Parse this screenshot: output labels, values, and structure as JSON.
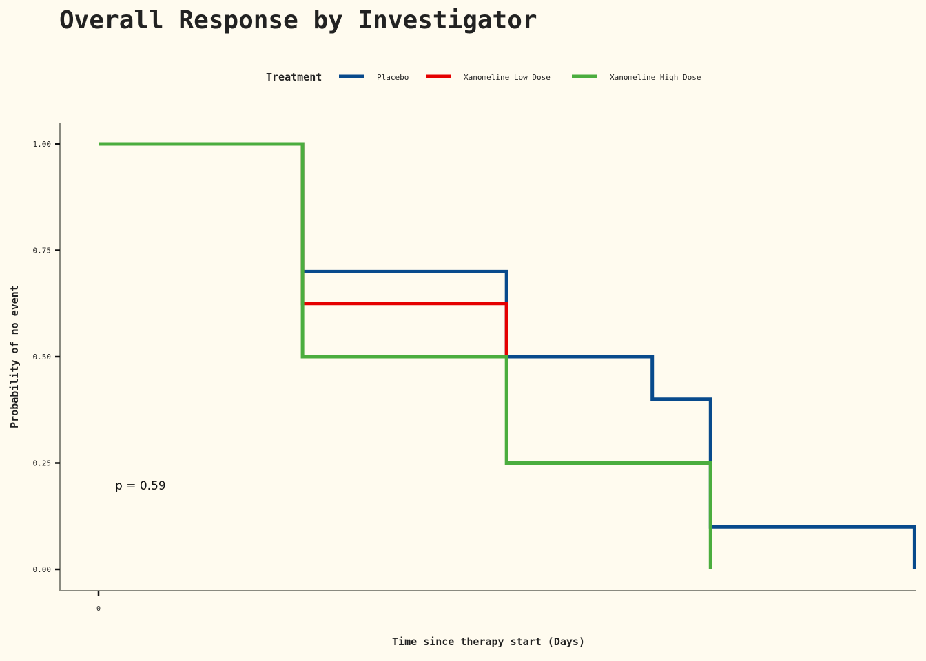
{
  "chart_data": {
    "type": "line",
    "step": true,
    "title": "Overall Response by Investigator",
    "xlabel": "Time since therapy start (Days)",
    "ylabel": "Probability of no event",
    "x_ticks": [
      0
    ],
    "x_tick_labels": [
      "0"
    ],
    "y_ticks": [
      0,
      0.25,
      0.5,
      0.75,
      1.0
    ],
    "y_tick_labels": [
      "0.00",
      "0.25",
      "0.50",
      "0.75",
      "1.00"
    ],
    "ylim": [
      0,
      1.0
    ],
    "legend": {
      "title": "Treatment",
      "placement": "top"
    },
    "annotation": "p = 0.59",
    "series": [
      {
        "name": "Placebo",
        "color": "#084a8c",
        "points": [
          [
            0,
            1.0
          ],
          [
            7,
            1.0
          ],
          [
            7,
            0.7
          ],
          [
            14,
            0.7
          ],
          [
            14,
            0.5
          ],
          [
            19,
            0.5
          ],
          [
            19,
            0.4
          ],
          [
            21,
            0.4
          ],
          [
            21,
            0.1
          ],
          [
            28,
            0.1
          ],
          [
            28,
            0.0
          ]
        ]
      },
      {
        "name": "Xanomeline Low Dose",
        "color": "#e50000",
        "points": [
          [
            0,
            1.0
          ],
          [
            7,
            1.0
          ],
          [
            7,
            0.625
          ],
          [
            14,
            0.625
          ],
          [
            14,
            0.5
          ]
        ]
      },
      {
        "name": "Xanomeline High Dose",
        "color": "#4bad3e",
        "points": [
          [
            0,
            1.0
          ],
          [
            7,
            1.0
          ],
          [
            7,
            0.5
          ],
          [
            14,
            0.5
          ],
          [
            14,
            0.25
          ],
          [
            21,
            0.25
          ],
          [
            21,
            0.0
          ]
        ]
      }
    ]
  }
}
